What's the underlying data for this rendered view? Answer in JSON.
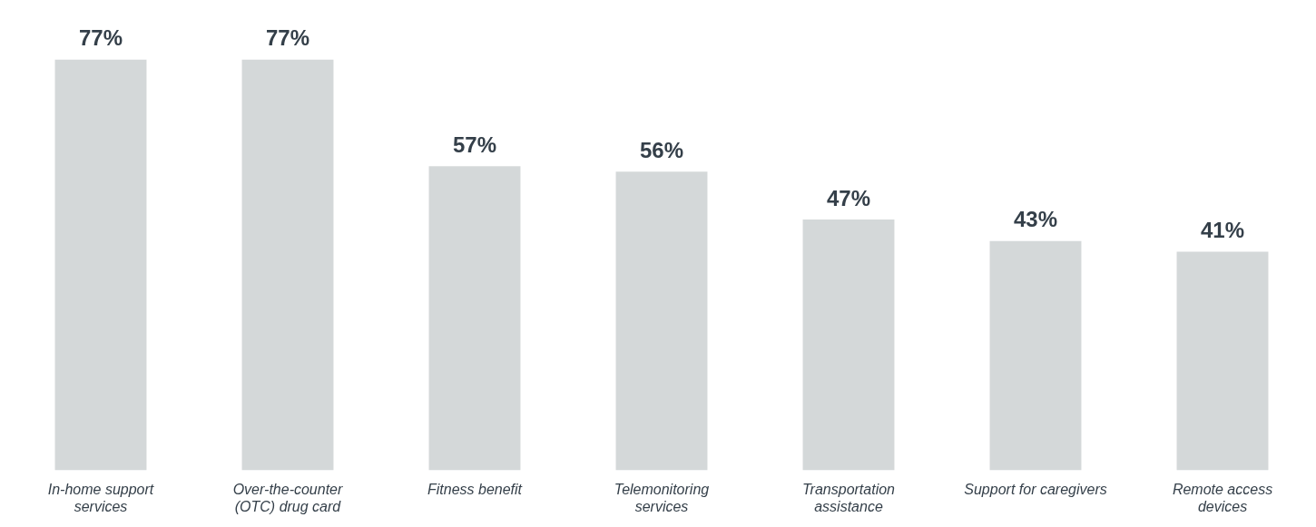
{
  "chart_data": {
    "type": "bar",
    "categories": [
      "In-home support services",
      "Over-the-counter (OTC) drug card",
      "Fitness benefit",
      "Telemonitoring services",
      "Transportation assistance",
      "Support for caregivers",
      "Remote access devices"
    ],
    "values": [
      77,
      77,
      57,
      56,
      47,
      43,
      41
    ],
    "value_labels": [
      "77%",
      "77%",
      "57%",
      "56%",
      "47%",
      "43%",
      "41%"
    ],
    "color": "#d4d8d9",
    "relative": false,
    "grid": false,
    "legend": false
  }
}
